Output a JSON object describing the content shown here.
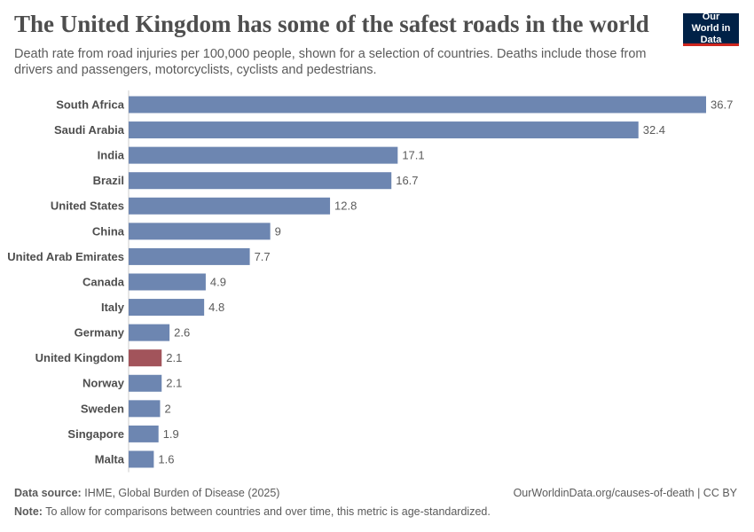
{
  "chart_data": {
    "type": "bar",
    "orientation": "horizontal",
    "title": "The United Kingdom has some of the safest roads in the world",
    "subtitle": "Death rate from road injuries per 100,000 people, shown for a selection of countries. Deaths include those from drivers and passengers, motorcyclists, cyclists and pedestrians.",
    "categories": [
      "South Africa",
      "Saudi Arabia",
      "India",
      "Brazil",
      "United States",
      "China",
      "United Arab Emirates",
      "Canada",
      "Italy",
      "Germany",
      "United Kingdom",
      "Norway",
      "Sweden",
      "Singapore",
      "Malta"
    ],
    "values": [
      36.7,
      32.4,
      17.1,
      16.7,
      12.8,
      9,
      7.7,
      4.9,
      4.8,
      2.6,
      2.1,
      2.1,
      2,
      1.9,
      1.6
    ],
    "colors": [
      "#6d86b1",
      "#6d86b1",
      "#6d86b1",
      "#6d86b1",
      "#6d86b1",
      "#6d86b1",
      "#6d86b1",
      "#6d86b1",
      "#6d86b1",
      "#6d86b1",
      "#a2545b",
      "#6d86b1",
      "#6d86b1",
      "#6d86b1",
      "#6d86b1"
    ],
    "source_label": "Data source:",
    "source": "IHME, Global Burden of Disease (2025)",
    "note_label": "Note:",
    "note": "To allow for comparisons between countries and over time, this metric is age-standardized.",
    "url": "OurWorldinData.org/causes-of-death | CC BY",
    "logo": "Our World in Data"
  }
}
